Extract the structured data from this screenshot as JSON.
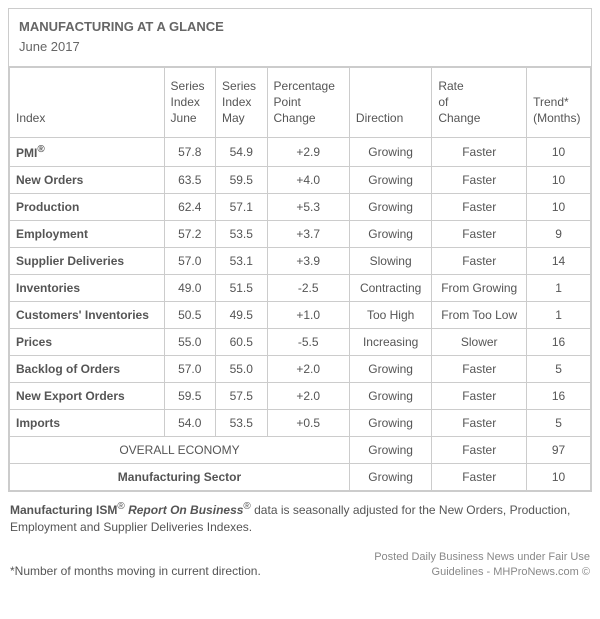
{
  "title": "MANUFACTURING AT A GLANCE",
  "subtitle": "June 2017",
  "columns": {
    "index": "Index",
    "june": "Series\nIndex\nJune",
    "may": "Series\nIndex\nMay",
    "pct": "Percentage\nPoint\nChange",
    "direction": "Direction",
    "rate": "Rate\nof\nChange",
    "trend": "Trend*\n(Months)"
  },
  "rows": [
    {
      "label": "PMI",
      "label_suffix": "®",
      "june": "57.8",
      "may": "54.9",
      "pct": "+2.9",
      "direction": "Growing",
      "rate": "Faster",
      "trend": "10"
    },
    {
      "label": "New Orders",
      "june": "63.5",
      "may": "59.5",
      "pct": "+4.0",
      "direction": "Growing",
      "rate": "Faster",
      "trend": "10"
    },
    {
      "label": "Production",
      "june": "62.4",
      "may": "57.1",
      "pct": "+5.3",
      "direction": "Growing",
      "rate": "Faster",
      "trend": "10"
    },
    {
      "label": "Employment",
      "june": "57.2",
      "may": "53.5",
      "pct": "+3.7",
      "direction": "Growing",
      "rate": "Faster",
      "trend": "9"
    },
    {
      "label": "Supplier Deliveries",
      "june": "57.0",
      "may": "53.1",
      "pct": "+3.9",
      "direction": "Slowing",
      "rate": "Faster",
      "trend": "14"
    },
    {
      "label": "Inventories",
      "june": "49.0",
      "may": "51.5",
      "pct": "-2.5",
      "direction": "Contracting",
      "rate": "From Growing",
      "trend": "1"
    },
    {
      "label": "Customers' Inventories",
      "june": "50.5",
      "may": "49.5",
      "pct": "+1.0",
      "direction": "Too High",
      "rate": "From Too Low",
      "trend": "1"
    },
    {
      "label": "Prices",
      "june": "55.0",
      "may": "60.5",
      "pct": "-5.5",
      "direction": "Increasing",
      "rate": "Slower",
      "trend": "16"
    },
    {
      "label": "Backlog of Orders",
      "june": "57.0",
      "may": "55.0",
      "pct": "+2.0",
      "direction": "Growing",
      "rate": "Faster",
      "trend": "5"
    },
    {
      "label": "New Export Orders",
      "june": "59.5",
      "may": "57.5",
      "pct": "+2.0",
      "direction": "Growing",
      "rate": "Faster",
      "trend": "16"
    },
    {
      "label": "Imports",
      "june": "54.0",
      "may": "53.5",
      "pct": "+0.5",
      "direction": "Growing",
      "rate": "Faster",
      "trend": "5"
    }
  ],
  "summary_rows": [
    {
      "label": "OVERALL ECONOMY",
      "class": "overall-label",
      "direction": "Growing",
      "rate": "Faster",
      "trend": "97"
    },
    {
      "label": "Manufacturing Sector",
      "class": "sector-label",
      "direction": "Growing",
      "rate": "Faster",
      "trend": "10"
    }
  ],
  "footer_note_prefix": "Manufacturing ISM",
  "footer_note_mid": " Report On Business",
  "footer_note_rest": " data is seasonally adjusted for the New Orders, Production, Employment and Supplier Deliveries Indexes.",
  "footnote": "*Number of months moving in current direction.",
  "credit_line1": "Posted Daily Business News under Fair Use",
  "credit_line2": "Guidelines - MHProNews.com ©",
  "colors": {
    "border": "#cccccc",
    "text": "#555555",
    "title": "#666666",
    "credit": "#888888",
    "bg": "#ffffff"
  }
}
